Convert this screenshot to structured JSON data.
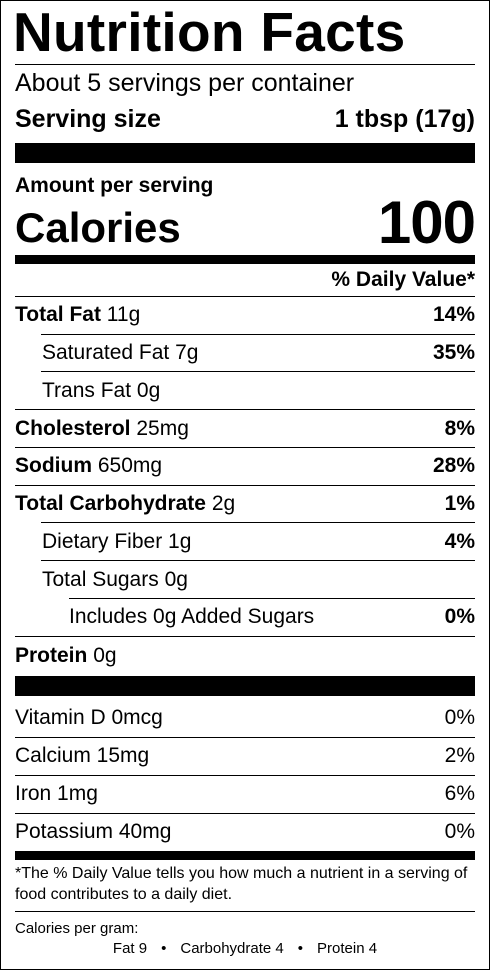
{
  "title": "Nutrition Facts",
  "servings_per_container": "About 5 servings per container",
  "serving_size": {
    "label": "Serving size",
    "value": "1 tbsp (17g)"
  },
  "amount_per_serving": "Amount per serving",
  "calories": {
    "label": "Calories",
    "value": "100"
  },
  "dv_header": "% Daily Value*",
  "nutrients": [
    {
      "name": "Total Fat",
      "amount": "11g",
      "dv": "14%"
    },
    {
      "name": "Saturated Fat",
      "amount": "7g",
      "dv": "35%"
    },
    {
      "name": "Trans Fat",
      "amount": "0g",
      "dv": ""
    },
    {
      "name": "Cholesterol",
      "amount": "25mg",
      "dv": "8%"
    },
    {
      "name": "Sodium",
      "amount": "650mg",
      "dv": "28%"
    },
    {
      "name": "Total Carbohydrate",
      "amount": "2g",
      "dv": "1%"
    },
    {
      "name": "Dietary Fiber",
      "amount": "1g",
      "dv": "4%"
    },
    {
      "name": "Total Sugars",
      "amount": "0g",
      "dv": ""
    },
    {
      "name": "Includes 0g Added Sugars",
      "amount": "",
      "dv": "0%"
    },
    {
      "name": "Protein",
      "amount": "0g",
      "dv": ""
    }
  ],
  "vitamins": [
    {
      "name": "Vitamin D 0mcg",
      "dv": "0%"
    },
    {
      "name": "Calcium 15mg",
      "dv": "2%"
    },
    {
      "name": "Iron 1mg",
      "dv": "6%"
    },
    {
      "name": "Potassium 40mg",
      "dv": "0%"
    }
  ],
  "footnote": "*The % Daily Value tells you how much a nutrient in a serving of food contributes to a daily diet.",
  "calories_per_gram": {
    "label": "Calories per gram:",
    "fat": "Fat 9",
    "carbohydrate": "Carbohydrate 4",
    "protein": "Protein 4",
    "separator": "•"
  }
}
